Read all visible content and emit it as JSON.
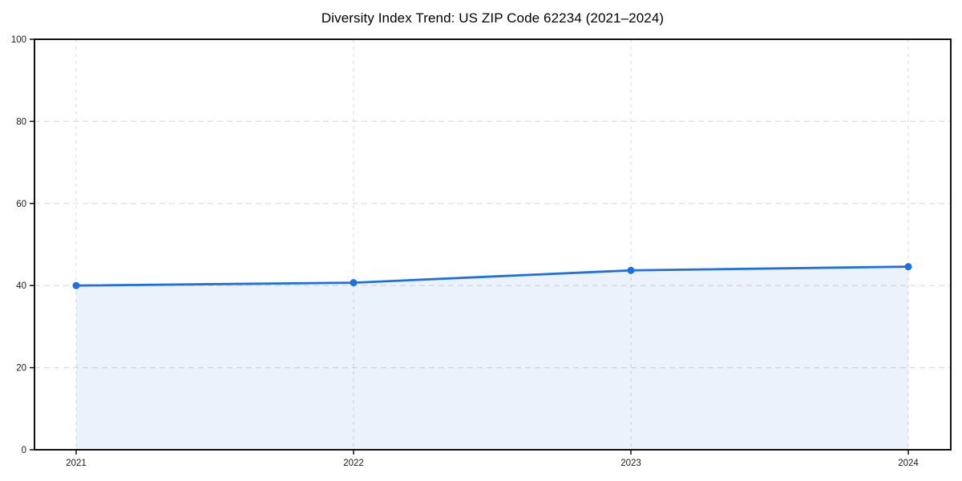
{
  "chart_data": {
    "type": "line",
    "title": "Diversity Index Trend: US ZIP Code 62234 (2021–2024)",
    "categories": [
      "2021",
      "2022",
      "2023",
      "2024"
    ],
    "series": [
      {
        "name": "Diversity Index",
        "values": [
          40.0,
          40.7,
          43.7,
          44.6
        ]
      }
    ],
    "xlabel": "",
    "ylabel": "",
    "ylim": [
      0,
      100
    ],
    "yticks": [
      0,
      20,
      40,
      60,
      80,
      100
    ],
    "grid": "dashed gridlines on both axes",
    "legend": "none",
    "marker": "circle",
    "area_fill_under_line": true,
    "colors": {
      "line": "#1f6fe0",
      "marker": "#1f6fe0",
      "area_fill": "rgba(31,111,224,0.09)",
      "grid": "#dedede",
      "spine": "#111111",
      "tick": "#111111",
      "tick_label": "#1a1a1a",
      "title": "#000000",
      "background": "#ffffff"
    }
  }
}
